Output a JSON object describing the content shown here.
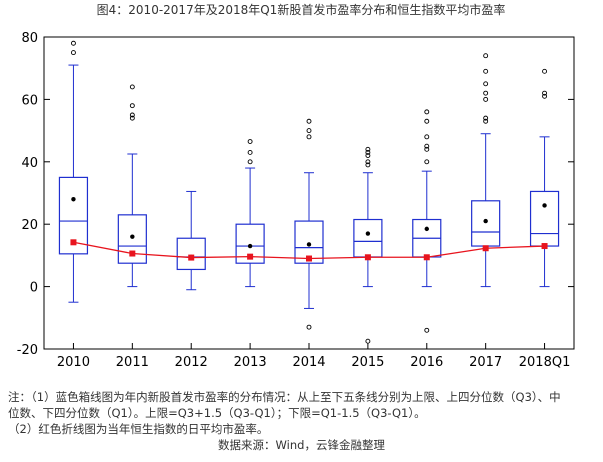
{
  "chart_data": {
    "type": "boxplot",
    "title": "图4：2010-2017年及2018年Q1新股首发市盈率分布和恒生指数平均市盈率",
    "categories": [
      "2010",
      "2011",
      "2012",
      "2013",
      "2014",
      "2015",
      "2016",
      "2017",
      "2018Q1"
    ],
    "ylim": [
      -20,
      80
    ],
    "yticks": [
      -20,
      0,
      20,
      40,
      60,
      80
    ],
    "boxes": [
      {
        "lower": -5,
        "q1": 10.5,
        "median": 21,
        "q3": 35,
        "upper": 71,
        "mean": 28,
        "outliers": [
          75,
          78
        ]
      },
      {
        "lower": 0,
        "q1": 7.5,
        "median": 13,
        "q3": 23,
        "upper": 42.5,
        "mean": 16,
        "outliers": [
          54,
          55,
          58,
          64
        ]
      },
      {
        "lower": -1,
        "q1": 5.5,
        "median": 9.5,
        "q3": 15.5,
        "upper": 30.5,
        "mean": 9.5,
        "outliers": []
      },
      {
        "lower": 0,
        "q1": 7.5,
        "median": 13,
        "q3": 20,
        "upper": 38,
        "mean": 13,
        "outliers": [
          40,
          43,
          46.5
        ]
      },
      {
        "lower": -7,
        "q1": 7.5,
        "median": 12.5,
        "q3": 21,
        "upper": 36.5,
        "mean": 13.5,
        "outliers": [
          -13,
          48,
          50,
          53
        ]
      },
      {
        "lower": 0,
        "q1": 9.5,
        "median": 14.5,
        "q3": 21.5,
        "upper": 36.5,
        "mean": 17,
        "outliers": [
          -17.5,
          39,
          40,
          42,
          43,
          44
        ]
      },
      {
        "lower": 0,
        "q1": 9.5,
        "median": 15.5,
        "q3": 21.5,
        "upper": 37,
        "mean": 18.5,
        "outliers": [
          -14,
          40,
          44,
          45,
          48,
          53,
          56
        ]
      },
      {
        "lower": 0,
        "q1": 13,
        "median": 17.5,
        "q3": 27.5,
        "upper": 49,
        "mean": 21,
        "outliers": [
          53,
          54,
          60,
          62,
          65,
          69,
          74
        ]
      },
      {
        "lower": 0,
        "q1": 13,
        "median": 17,
        "q3": 30.5,
        "upper": 48,
        "mean": 26,
        "outliers": [
          61,
          62,
          69
        ]
      }
    ],
    "series": [
      {
        "name": "恒生指数平均市盈率",
        "color": "#e8141e",
        "values": [
          14.2,
          10.6,
          9.3,
          9.6,
          9.0,
          9.4,
          9.4,
          12.3,
          13.0
        ]
      }
    ],
    "box_color": "#1f2fd0"
  },
  "notes": {
    "line1": "注：（1）蓝色箱线图为年内新股首发市盈率的分布情况：从上至下五条线分别为上限、上四分位数（Q3）、中",
    "line2": "位数、下四分位数（Q1）。上限=Q3+1.5（Q3-Q1）；下限=Q1-1.5（Q3-Q1）。",
    "line3": "（2）红色折线图为当年恒生指数的日平均市盈率。",
    "source": "数据来源：Wind，云锋金融整理"
  }
}
